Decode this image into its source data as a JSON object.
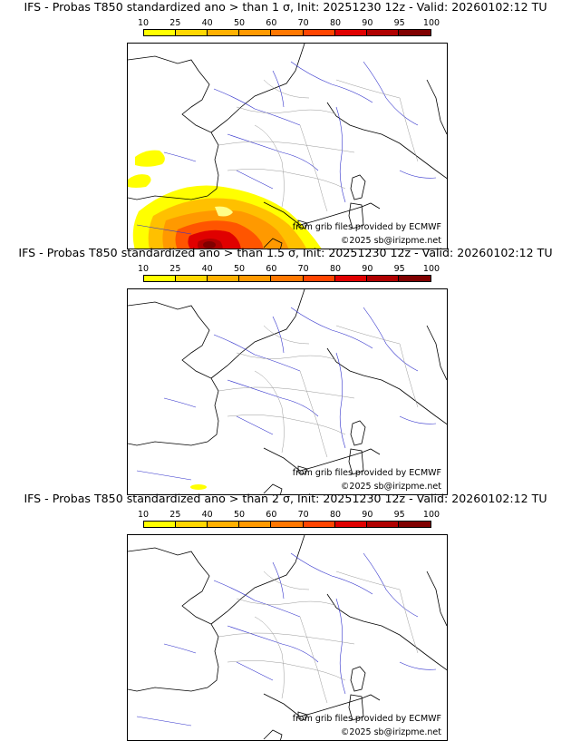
{
  "legend": {
    "ticks": [
      "10",
      "25",
      "40",
      "50",
      "60",
      "70",
      "80",
      "90",
      "95",
      "100"
    ],
    "colors": [
      "#ffff00",
      "#ffd700",
      "#ffb000",
      "#ff9900",
      "#ff7700",
      "#ff4400",
      "#e00000",
      "#b00000",
      "#800000"
    ]
  },
  "panels": [
    {
      "title": "IFS - Probas T850  standardized ano > than 1 σ, Init: 20251230 12z - Valid: 20260102:12 TU",
      "credit_grib": "from grib files provided by ECMWF",
      "credit_copy": "©2025 sb@irizpme.net"
    },
    {
      "title": "IFS - Probas T850  standardized ano > than 1.5 σ, Init: 20251230 12z - Valid: 20260102:12 TU",
      "credit_grib": "from grib files provided by ECMWF",
      "credit_copy": "©2025 sb@irizpme.net"
    },
    {
      "title": "IFS - Probas T850  standardized ano > than 2 σ, Init: 20251230 12z - Valid: 20260102:12 TU",
      "credit_grib": "from grib files provided by ECMWF",
      "credit_copy": "©2025 sb@irizpme.net"
    }
  ]
}
